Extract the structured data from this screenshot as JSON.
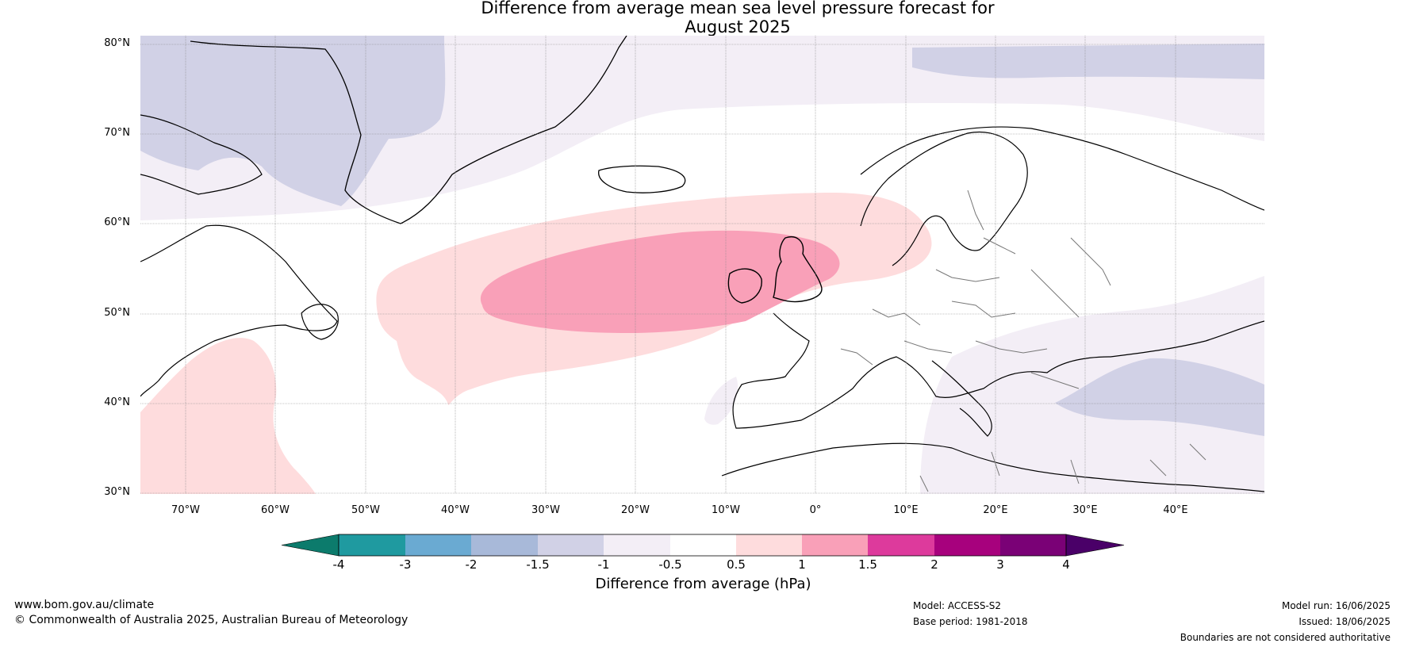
{
  "title": {
    "line1": "Difference from average mean sea level pressure forecast for",
    "line2": "August 2025"
  },
  "latitude_labels": [
    "80°N",
    "70°N",
    "60°N",
    "50°N",
    "40°N",
    "30°N"
  ],
  "longitude_labels": [
    "70°W",
    "60°W",
    "50°W",
    "40°W",
    "30°W",
    "20°W",
    "10°W",
    "0°",
    "10°E",
    "20°E",
    "30°E",
    "40°E"
  ],
  "colorbar": {
    "title": "Difference from average (hPa)",
    "ticks": [
      "-4",
      "-3",
      "-2",
      "-1.5",
      "-1",
      "-0.5",
      "0.5",
      "1",
      "1.5",
      "2",
      "3",
      "4"
    ],
    "colors": [
      "#0c7b6c",
      "#1f9aa0",
      "#6aaad2",
      "#a8b9d9",
      "#d1d1e6",
      "#f3eef6",
      "#ffffff",
      "#fedcdd",
      "#f9a0b8",
      "#dd3a9c",
      "#a7017d",
      "#7a0176",
      "#4a0068"
    ]
  },
  "map_colors": {
    "land_outline": "#000000",
    "border": "#777777",
    "grid": "#888888"
  },
  "footer": {
    "website": "www.bom.gov.au/climate",
    "copyright": "© Commonwealth of Australia 2025, Australian Bureau of Meteorology",
    "model": "Model: ACCESS-S2",
    "base_period": "Base period: 1981-2018",
    "model_run": "Model run: 16/06/2025",
    "issued": "Issued: 18/06/2025",
    "disclaimer": "Boundaries are not considered authoritative"
  }
}
